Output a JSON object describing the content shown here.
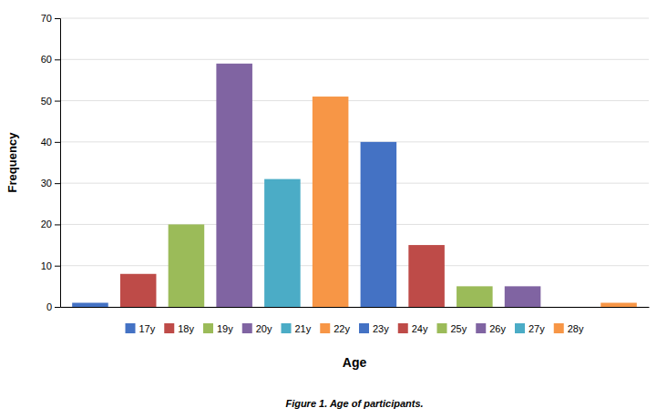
{
  "chart_data": {
    "type": "bar",
    "categories": [
      "17y",
      "18y",
      "19y",
      "20y",
      "21y",
      "22y",
      "23y",
      "24y",
      "25y",
      "26y",
      "27y",
      "28y"
    ],
    "values": [
      1,
      8,
      20,
      59,
      31,
      51,
      40,
      15,
      5,
      5,
      0,
      1
    ],
    "colors": [
      "#4472C4",
      "#BE4B48",
      "#9BBB59",
      "#8064A2",
      "#4BACC6",
      "#F79646",
      "#4472C4",
      "#BE4B48",
      "#9BBB59",
      "#8064A2",
      "#4BACC6",
      "#F79646"
    ],
    "xlabel": "Age",
    "ylabel": "Frequency",
    "caption": "Figure 1. Age of participants.",
    "ylim": [
      0,
      70
    ],
    "yticks": [
      0,
      10,
      20,
      30,
      40,
      50,
      60,
      70
    ],
    "grid": true,
    "legend": "bottom",
    "tick_labels": "y"
  }
}
